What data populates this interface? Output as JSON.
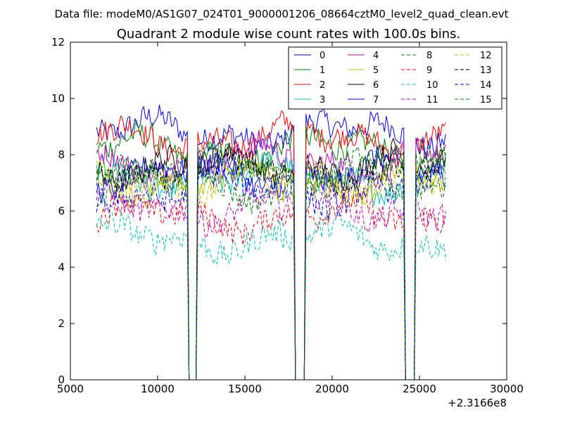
{
  "chart_data": {
    "type": "line",
    "suptitle": "Data file: modeM0/AS1G07_024T01_9000001206_08664cztM0_level2_quad_clean.evt",
    "title": "Quadrant 2 module wise count rates with 100.0s bins.",
    "xlabel": "",
    "ylabel": "",
    "x_offset_label": "+2.3166e8",
    "xlim": [
      5000,
      30000
    ],
    "ylim": [
      0,
      12
    ],
    "xticks": [
      5000,
      10000,
      15000,
      20000,
      25000,
      30000
    ],
    "yticks": [
      0,
      2,
      4,
      6,
      8,
      10,
      12
    ],
    "grid": false,
    "legend_position": "top-right",
    "legend_columns": 4,
    "x_start": 6500,
    "x_end": 26500,
    "bin_width": 100,
    "gaps": [
      [
        11700,
        12300
      ],
      [
        17800,
        18500
      ],
      [
        24100,
        24800
      ]
    ],
    "series": [
      {
        "name": "0",
        "color": "#0000ff",
        "style": "solid",
        "level": 8.8
      },
      {
        "name": "1",
        "color": "#008000",
        "style": "solid",
        "level": 8.2
      },
      {
        "name": "2",
        "color": "#ff0000",
        "style": "solid",
        "level": 8.6
      },
      {
        "name": "3",
        "color": "#00bfbf",
        "style": "solid",
        "level": 7.2
      },
      {
        "name": "4",
        "color": "#bf00bf",
        "style": "solid",
        "level": 7.8
      },
      {
        "name": "5",
        "color": "#bfbf00",
        "style": "solid",
        "level": 7.0
      },
      {
        "name": "6",
        "color": "#000000",
        "style": "solid",
        "level": 7.6
      },
      {
        "name": "7",
        "color": "#0000ff",
        "style": "solid",
        "level": 7.3
      },
      {
        "name": "8",
        "color": "#008000",
        "style": "dashed",
        "level": 6.9
      },
      {
        "name": "9",
        "color": "#ff0000",
        "style": "dashed",
        "level": 5.8
      },
      {
        "name": "10",
        "color": "#00bfbf",
        "style": "dashed",
        "level": 5.0
      },
      {
        "name": "11",
        "color": "#bf00bf",
        "style": "dashed",
        "level": 6.1
      },
      {
        "name": "12",
        "color": "#bfbf00",
        "style": "dashed",
        "level": 7.1
      },
      {
        "name": "13",
        "color": "#000000",
        "style": "dashed",
        "level": 7.4
      },
      {
        "name": "14",
        "color": "#0000ff",
        "style": "dashed",
        "level": 6.7
      },
      {
        "name": "15",
        "color": "#008000",
        "style": "dashed",
        "level": 7.6
      }
    ]
  }
}
